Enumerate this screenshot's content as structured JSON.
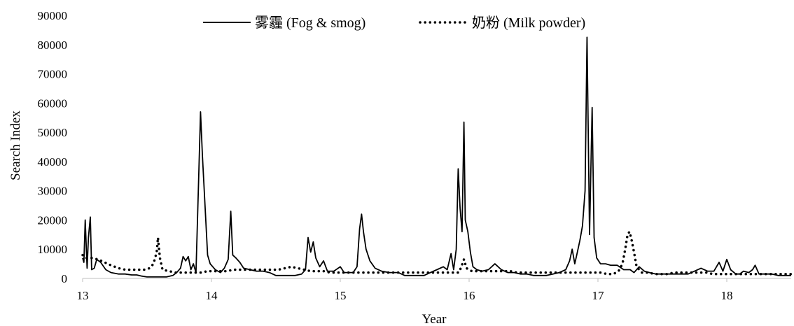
{
  "chart_data": {
    "type": "line",
    "xlabel": "Year",
    "ylabel": "Search Index",
    "xlim": [
      13,
      18.5
    ],
    "ylim": [
      0,
      90000
    ],
    "xticks": [
      "13",
      "14",
      "15",
      "16",
      "17",
      "18"
    ],
    "yticks": [
      "0",
      "10000",
      "20000",
      "30000",
      "40000",
      "50000",
      "60000",
      "70000",
      "80000",
      "90000"
    ],
    "legend_position": "top-center",
    "grid": false,
    "series": [
      {
        "name": "雾霾 (Fog & smog)",
        "style": "solid",
        "color": "#000000",
        "points": [
          [
            13.0,
            7000
          ],
          [
            13.01,
            5500
          ],
          [
            13.02,
            20000
          ],
          [
            13.035,
            3500
          ],
          [
            13.045,
            14000
          ],
          [
            13.06,
            21000
          ],
          [
            13.07,
            3000
          ],
          [
            13.09,
            3500
          ],
          [
            13.11,
            6500
          ],
          [
            13.14,
            5500
          ],
          [
            13.18,
            3000
          ],
          [
            13.22,
            2000
          ],
          [
            13.28,
            1500
          ],
          [
            13.33,
            1500
          ],
          [
            13.38,
            1200
          ],
          [
            13.42,
            1200
          ],
          [
            13.46,
            800
          ],
          [
            13.5,
            500
          ],
          [
            13.55,
            500
          ],
          [
            13.6,
            500
          ],
          [
            13.65,
            500
          ],
          [
            13.7,
            1000
          ],
          [
            13.73,
            2000
          ],
          [
            13.76,
            3500
          ],
          [
            13.78,
            7500
          ],
          [
            13.8,
            6000
          ],
          [
            13.82,
            7500
          ],
          [
            13.84,
            3000
          ],
          [
            13.86,
            5000
          ],
          [
            13.88,
            2000
          ],
          [
            13.9,
            33000
          ],
          [
            13.915,
            57000
          ],
          [
            13.93,
            42000
          ],
          [
            13.95,
            25000
          ],
          [
            13.97,
            8000
          ],
          [
            13.99,
            5000
          ],
          [
            14.03,
            3000
          ],
          [
            14.07,
            2000
          ],
          [
            14.1,
            3500
          ],
          [
            14.13,
            6500
          ],
          [
            14.15,
            23000
          ],
          [
            14.165,
            8000
          ],
          [
            14.19,
            7000
          ],
          [
            14.22,
            5500
          ],
          [
            14.25,
            3500
          ],
          [
            14.3,
            3000
          ],
          [
            14.35,
            2500
          ],
          [
            14.4,
            2500
          ],
          [
            14.45,
            2000
          ],
          [
            14.5,
            1000
          ],
          [
            14.55,
            1000
          ],
          [
            14.6,
            1000
          ],
          [
            14.65,
            1000
          ],
          [
            14.7,
            1500
          ],
          [
            14.73,
            3000
          ],
          [
            14.75,
            14000
          ],
          [
            14.77,
            9000
          ],
          [
            14.79,
            12500
          ],
          [
            14.81,
            7000
          ],
          [
            14.84,
            4000
          ],
          [
            14.87,
            6000
          ],
          [
            14.9,
            2500
          ],
          [
            14.95,
            2500
          ],
          [
            15.0,
            4000
          ],
          [
            15.03,
            2000
          ],
          [
            15.07,
            2000
          ],
          [
            15.1,
            2000
          ],
          [
            15.13,
            4000
          ],
          [
            15.15,
            17000
          ],
          [
            15.165,
            22000
          ],
          [
            15.18,
            16000
          ],
          [
            15.2,
            10000
          ],
          [
            15.23,
            6000
          ],
          [
            15.27,
            3500
          ],
          [
            15.32,
            2500
          ],
          [
            15.38,
            2000
          ],
          [
            15.45,
            2000
          ],
          [
            15.5,
            1000
          ],
          [
            15.55,
            1000
          ],
          [
            15.6,
            1000
          ],
          [
            15.65,
            1000
          ],
          [
            15.7,
            2000
          ],
          [
            15.75,
            3000
          ],
          [
            15.8,
            4000
          ],
          [
            15.83,
            3000
          ],
          [
            15.86,
            8500
          ],
          [
            15.88,
            3000
          ],
          [
            15.9,
            10000
          ],
          [
            15.915,
            37500
          ],
          [
            15.93,
            24000
          ],
          [
            15.945,
            16000
          ],
          [
            15.96,
            53500
          ],
          [
            15.97,
            20000
          ],
          [
            15.99,
            16000
          ],
          [
            16.01,
            9000
          ],
          [
            16.03,
            4000
          ],
          [
            16.06,
            3000
          ],
          [
            16.1,
            2500
          ],
          [
            16.15,
            3000
          ],
          [
            16.2,
            5000
          ],
          [
            16.25,
            3000
          ],
          [
            16.3,
            2000
          ],
          [
            16.35,
            2000
          ],
          [
            16.4,
            1500
          ],
          [
            16.45,
            1500
          ],
          [
            16.5,
            1000
          ],
          [
            16.55,
            1000
          ],
          [
            16.6,
            1000
          ],
          [
            16.65,
            1500
          ],
          [
            16.7,
            2000
          ],
          [
            16.75,
            3000
          ],
          [
            16.78,
            6000
          ],
          [
            16.8,
            10000
          ],
          [
            16.82,
            5000
          ],
          [
            16.84,
            9000
          ],
          [
            16.86,
            13000
          ],
          [
            16.88,
            18000
          ],
          [
            16.9,
            30000
          ],
          [
            16.915,
            82500
          ],
          [
            16.935,
            15000
          ],
          [
            16.955,
            58500
          ],
          [
            16.97,
            14000
          ],
          [
            16.99,
            7000
          ],
          [
            17.02,
            5000
          ],
          [
            17.06,
            5000
          ],
          [
            17.1,
            4500
          ],
          [
            17.15,
            4500
          ],
          [
            17.2,
            3000
          ],
          [
            17.25,
            3000
          ],
          [
            17.28,
            2000
          ],
          [
            17.32,
            4000
          ],
          [
            17.36,
            2500
          ],
          [
            17.4,
            2000
          ],
          [
            17.45,
            1500
          ],
          [
            17.5,
            1500
          ],
          [
            17.55,
            1500
          ],
          [
            17.6,
            1500
          ],
          [
            17.65,
            1500
          ],
          [
            17.7,
            1500
          ],
          [
            17.75,
            2500
          ],
          [
            17.8,
            3500
          ],
          [
            17.85,
            2500
          ],
          [
            17.9,
            2500
          ],
          [
            17.94,
            5500
          ],
          [
            17.97,
            2500
          ],
          [
            18.0,
            6500
          ],
          [
            18.03,
            3000
          ],
          [
            18.07,
            1500
          ],
          [
            18.1,
            1500
          ],
          [
            18.13,
            2500
          ],
          [
            18.17,
            2000
          ],
          [
            18.2,
            3000
          ],
          [
            18.22,
            4500
          ],
          [
            18.25,
            1500
          ],
          [
            18.3,
            1500
          ],
          [
            18.35,
            1500
          ],
          [
            18.4,
            1000
          ],
          [
            18.45,
            1000
          ],
          [
            18.5,
            1000
          ]
        ]
      },
      {
        "name": "奶粉 (Milk powder)",
        "style": "dotted",
        "color": "#000000",
        "points": [
          [
            13.0,
            8000
          ],
          [
            13.03,
            7000
          ],
          [
            13.07,
            7000
          ],
          [
            13.12,
            6500
          ],
          [
            13.17,
            5500
          ],
          [
            13.22,
            4500
          ],
          [
            13.28,
            3500
          ],
          [
            13.33,
            3000
          ],
          [
            13.38,
            3000
          ],
          [
            13.43,
            3000
          ],
          [
            13.48,
            3000
          ],
          [
            13.52,
            3500
          ],
          [
            13.55,
            5000
          ],
          [
            13.575,
            9000
          ],
          [
            13.585,
            14000
          ],
          [
            13.6,
            7000
          ],
          [
            13.62,
            3000
          ],
          [
            13.67,
            2500
          ],
          [
            13.72,
            2000
          ],
          [
            13.77,
            2000
          ],
          [
            13.82,
            2000
          ],
          [
            13.87,
            2000
          ],
          [
            13.92,
            2000
          ],
          [
            13.97,
            2500
          ],
          [
            14.02,
            2500
          ],
          [
            14.07,
            2500
          ],
          [
            14.12,
            2500
          ],
          [
            14.17,
            3000
          ],
          [
            14.22,
            3000
          ],
          [
            14.27,
            3000
          ],
          [
            14.32,
            3000
          ],
          [
            14.37,
            3000
          ],
          [
            14.42,
            3000
          ],
          [
            14.47,
            3000
          ],
          [
            14.52,
            3000
          ],
          [
            14.57,
            3500
          ],
          [
            14.62,
            4000
          ],
          [
            14.67,
            3500
          ],
          [
            14.72,
            3000
          ],
          [
            14.77,
            2500
          ],
          [
            14.82,
            2500
          ],
          [
            14.87,
            2500
          ],
          [
            14.92,
            2000
          ],
          [
            14.97,
            2000
          ],
          [
            15.02,
            2000
          ],
          [
            15.07,
            2000
          ],
          [
            15.12,
            2000
          ],
          [
            15.17,
            2000
          ],
          [
            15.22,
            2000
          ],
          [
            15.27,
            2000
          ],
          [
            15.32,
            2000
          ],
          [
            15.37,
            2000
          ],
          [
            15.42,
            2000
          ],
          [
            15.47,
            2000
          ],
          [
            15.52,
            2000
          ],
          [
            15.57,
            2000
          ],
          [
            15.62,
            2000
          ],
          [
            15.67,
            2000
          ],
          [
            15.72,
            2000
          ],
          [
            15.77,
            2000
          ],
          [
            15.82,
            2000
          ],
          [
            15.87,
            2000
          ],
          [
            15.92,
            2000
          ],
          [
            15.94,
            4000
          ],
          [
            15.96,
            6500
          ],
          [
            15.98,
            3500
          ],
          [
            16.02,
            2500
          ],
          [
            16.07,
            2500
          ],
          [
            16.12,
            2500
          ],
          [
            16.17,
            2500
          ],
          [
            16.22,
            2500
          ],
          [
            16.27,
            2500
          ],
          [
            16.32,
            2500
          ],
          [
            16.37,
            2000
          ],
          [
            16.42,
            2000
          ],
          [
            16.47,
            2000
          ],
          [
            16.52,
            2000
          ],
          [
            16.57,
            2000
          ],
          [
            16.62,
            2000
          ],
          [
            16.67,
            2000
          ],
          [
            16.72,
            2000
          ],
          [
            16.77,
            2000
          ],
          [
            16.82,
            2000
          ],
          [
            16.87,
            2000
          ],
          [
            16.92,
            2000
          ],
          [
            16.97,
            2000
          ],
          [
            17.02,
            2000
          ],
          [
            17.07,
            1500
          ],
          [
            17.12,
            1500
          ],
          [
            17.16,
            2500
          ],
          [
            17.19,
            5000
          ],
          [
            17.21,
            9500
          ],
          [
            17.23,
            15000
          ],
          [
            17.245,
            16000
          ],
          [
            17.26,
            13500
          ],
          [
            17.28,
            9000
          ],
          [
            17.3,
            4000
          ],
          [
            17.34,
            2000
          ],
          [
            17.39,
            2000
          ],
          [
            17.44,
            1500
          ],
          [
            17.49,
            1500
          ],
          [
            17.54,
            1500
          ],
          [
            17.59,
            2000
          ],
          [
            17.64,
            2000
          ],
          [
            17.69,
            2000
          ],
          [
            17.74,
            2000
          ],
          [
            17.79,
            2000
          ],
          [
            17.84,
            2000
          ],
          [
            17.89,
            1500
          ],
          [
            17.94,
            1500
          ],
          [
            17.99,
            1500
          ],
          [
            18.04,
            1500
          ],
          [
            18.09,
            1500
          ],
          [
            18.14,
            1500
          ],
          [
            18.19,
            1500
          ],
          [
            18.24,
            1500
          ],
          [
            18.29,
            1500
          ],
          [
            18.34,
            1500
          ],
          [
            18.39,
            1500
          ],
          [
            18.44,
            1500
          ],
          [
            18.5,
            1500
          ]
        ]
      }
    ]
  }
}
